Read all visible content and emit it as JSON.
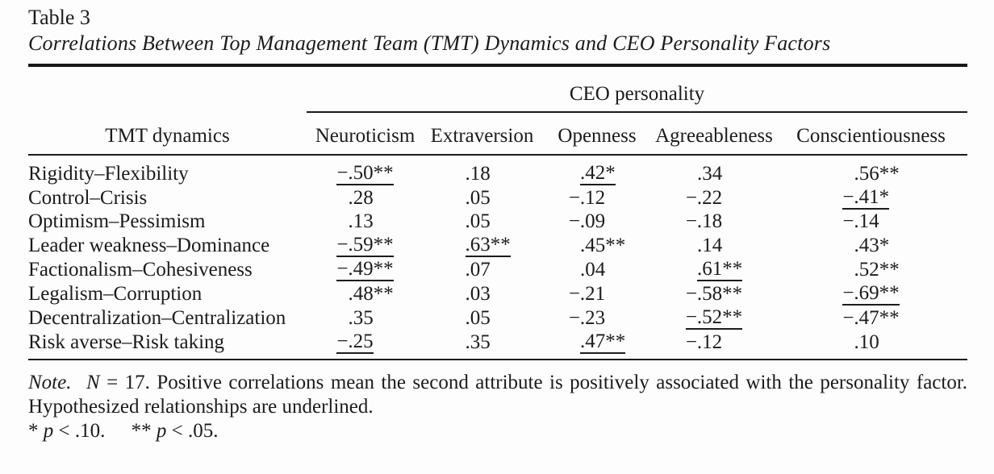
{
  "caption": {
    "number": "Table 3",
    "title": "Correlations Between Top Management Team (TMT) Dynamics and CEO Personality Factors"
  },
  "table": {
    "spanner_label": "CEO personality",
    "stub_header": "TMT dynamics",
    "columns": [
      "Neuroticism",
      "Extraversion",
      "Openness",
      "Agreeableness",
      "Conscientiousness"
    ],
    "rows": [
      {
        "label": "Rigidity–Flexibility",
        "cells": [
          {
            "v": "−.50**",
            "cls": "cv u"
          },
          {
            "v": ".18",
            "cls": "cv noSgn s0"
          },
          {
            "v": ".42*",
            "cls": "cv noSgn s1 u"
          },
          {
            "v": ".34",
            "cls": "cv noSgn s0"
          },
          {
            "v": ".56**",
            "cls": "cv noSgn"
          }
        ]
      },
      {
        "label": "Control–Crisis",
        "cells": [
          {
            "v": ".28",
            "cls": "cv noSgn s0"
          },
          {
            "v": ".05",
            "cls": "cv noSgn s0"
          },
          {
            "v": "−.12",
            "cls": "cv s0"
          },
          {
            "v": "−.22",
            "cls": "cv s0"
          },
          {
            "v": "−.41*",
            "cls": "cv s1 u"
          }
        ]
      },
      {
        "label": "Optimism–Pessimism",
        "cells": [
          {
            "v": ".13",
            "cls": "cv noSgn s0"
          },
          {
            "v": ".05",
            "cls": "cv noSgn s0"
          },
          {
            "v": "−.09",
            "cls": "cv s0"
          },
          {
            "v": "−.18",
            "cls": "cv s0"
          },
          {
            "v": "−.14",
            "cls": "cv s0"
          }
        ]
      },
      {
        "label": "Leader weakness–Dominance",
        "cells": [
          {
            "v": "−.59**",
            "cls": "cv u"
          },
          {
            "v": ".63**",
            "cls": "cv noSgn u"
          },
          {
            "v": ".45**",
            "cls": "cv noSgn"
          },
          {
            "v": ".14",
            "cls": "cv noSgn s0"
          },
          {
            "v": ".43*",
            "cls": "cv noSgn s1"
          }
        ]
      },
      {
        "label": "Factionalism–Cohesiveness",
        "cells": [
          {
            "v": "−.49**",
            "cls": "cv u"
          },
          {
            "v": ".07",
            "cls": "cv noSgn s0"
          },
          {
            "v": ".04",
            "cls": "cv noSgn s0"
          },
          {
            "v": ".61**",
            "cls": "cv noSgn u"
          },
          {
            "v": ".52**",
            "cls": "cv noSgn"
          }
        ]
      },
      {
        "label": "Legalism–Corruption",
        "cells": [
          {
            "v": ".48**",
            "cls": "cv noSgn"
          },
          {
            "v": ".03",
            "cls": "cv noSgn s0"
          },
          {
            "v": "−.21",
            "cls": "cv s0"
          },
          {
            "v": "−.58**",
            "cls": "cv"
          },
          {
            "v": "−.69**",
            "cls": "cv u"
          }
        ]
      },
      {
        "label": "Decentralization–Centralization",
        "cells": [
          {
            "v": ".35",
            "cls": "cv noSgn s0"
          },
          {
            "v": ".05",
            "cls": "cv noSgn s0"
          },
          {
            "v": "−.23",
            "cls": "cv s0"
          },
          {
            "v": "−.52**",
            "cls": "cv u"
          },
          {
            "v": "−.47**",
            "cls": "cv"
          }
        ]
      },
      {
        "label": "Risk averse–Risk taking",
        "cells": [
          {
            "v": "−.25",
            "cls": "cv s0 u"
          },
          {
            "v": ".35",
            "cls": "cv noSgn s0"
          },
          {
            "v": ".47**",
            "cls": "cv noSgn u"
          },
          {
            "v": "−.12",
            "cls": "cv s0"
          },
          {
            "v": ".10",
            "cls": "cv noSgn s0"
          }
        ]
      }
    ]
  },
  "footnote": {
    "label": "Note.",
    "n_symbol": "N",
    "n_rest": "= 17. Positive correlations mean the second attribute is positively associated with the personality factor. Hypothesized relationships are underlined.",
    "sig": [
      {
        "stars": "*",
        "p": "p",
        "rest": "< .10."
      },
      {
        "stars": "**",
        "p": "p",
        "rest": "< .05."
      }
    ]
  }
}
